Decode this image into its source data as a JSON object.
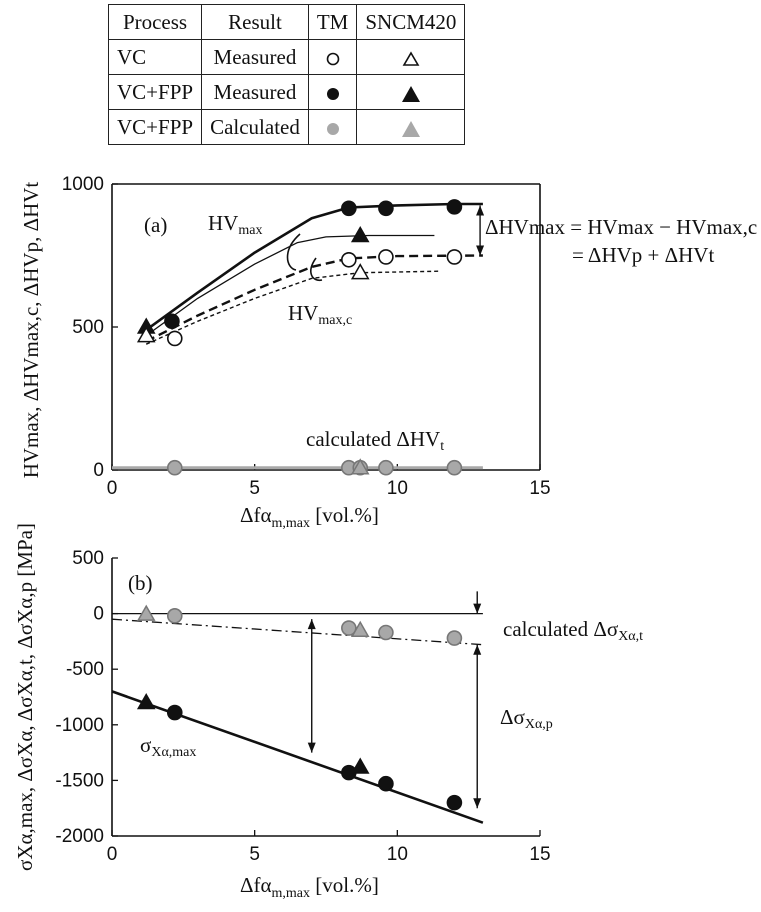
{
  "legend": {
    "headers": [
      "Process",
      "Result",
      "TM",
      "SNCM420"
    ],
    "rows": [
      {
        "process": "VC",
        "result": "Measured",
        "tm_marker": "open-circle",
        "sncm_marker": "open-triangle"
      },
      {
        "process": "VC+FPP",
        "result": "Measured",
        "tm_marker": "filled-circle",
        "sncm_marker": "filled-triangle"
      },
      {
        "process": "VC+FPP",
        "result": "Calculated",
        "tm_marker": "gray-circle",
        "sncm_marker": "gray-triangle"
      }
    ]
  },
  "colors": {
    "black": "#111111",
    "gray": "#a8a8a8",
    "gray_stroke": "#777777",
    "white": "#ffffff"
  },
  "chart_data": [
    {
      "type": "scatter",
      "panel_label": "(a)",
      "xlabel": "Δfα",
      "xlabel_sub": "m,max",
      "xlabel_unit": " [vol.%]",
      "ylabel": "HVmax, ΔHVmax,c, ΔHVp, ΔHVt",
      "xlim": [
        0,
        15
      ],
      "ylim": [
        0,
        1000
      ],
      "xticks": [
        0,
        5,
        10,
        15
      ],
      "yticks": [
        0,
        500,
        1000
      ],
      "xtick_labels": [
        "0",
        "5",
        "10",
        "15"
      ],
      "ytick_labels": [
        "0",
        "500",
        "1000"
      ],
      "series": [
        {
          "name": "TM VC+FPP measured HVmax",
          "marker": "filled-circle",
          "x": [
            2.1,
            8.3,
            9.6,
            12.0
          ],
          "y": [
            520,
            915,
            915,
            920
          ]
        },
        {
          "name": "SNCM420 VC+FPP measured HVmax",
          "marker": "filled-triangle",
          "x": [
            1.2,
            8.7
          ],
          "y": [
            500,
            820
          ]
        },
        {
          "name": "TM VC measured HVmax,c",
          "marker": "open-circle",
          "x": [
            2.2,
            8.3,
            9.6,
            12.0
          ],
          "y": [
            460,
            735,
            745,
            745
          ]
        },
        {
          "name": "SNCM420 VC measured HVmax,c",
          "marker": "open-triangle",
          "x": [
            1.2,
            8.7
          ],
          "y": [
            470,
            690
          ]
        },
        {
          "name": "TM calculated ΔHVt",
          "marker": "gray-circle",
          "x": [
            2.2,
            8.3,
            8.7,
            9.6,
            12.0
          ],
          "y": [
            8,
            8,
            8,
            8,
            8
          ]
        },
        {
          "name": "SNCM420 calculated ΔHVt",
          "marker": "gray-triangle",
          "x": [
            8.7
          ],
          "y": [
            8
          ]
        }
      ],
      "curves": [
        {
          "name": "TM HVmax fit",
          "style": "solid-thick",
          "x": [
            1.2,
            3.0,
            5.0,
            7.0,
            8.3,
            10.0,
            12.0,
            13.0
          ],
          "y": [
            490,
            620,
            760,
            880,
            918,
            925,
            930,
            930
          ]
        },
        {
          "name": "SNCM420 HVmax fit",
          "style": "solid-thin",
          "x": [
            1.2,
            3.0,
            5.0,
            6.5,
            7.5,
            9.0,
            11.3
          ],
          "y": [
            470,
            600,
            720,
            795,
            815,
            820,
            820
          ]
        },
        {
          "name": "TM HVmax,c fit",
          "style": "dashed-thick",
          "x": [
            1.2,
            3.0,
            5.0,
            7.0,
            8.3,
            10.0,
            13.0
          ],
          "y": [
            450,
            540,
            630,
            710,
            740,
            748,
            750
          ]
        },
        {
          "name": "SNCM420 HVmax,c fit",
          "style": "dashed-thin",
          "x": [
            1.2,
            3.0,
            5.0,
            7.0,
            8.7,
            11.5
          ],
          "y": [
            440,
            520,
            600,
            670,
            690,
            695
          ]
        },
        {
          "name": "calculated ΔHVt line",
          "style": "gray-thick",
          "x": [
            0,
            13
          ],
          "y": [
            8,
            8
          ]
        }
      ],
      "annotations": [
        {
          "text": "HV",
          "sub": "max"
        },
        {
          "text": "HV",
          "sub": "max,c"
        },
        {
          "text": "calculated ΔHV",
          "sub": "t"
        },
        {
          "text": "ΔHVmax = HVmax − HVmax,c",
          "line2": "= ΔHVp + ΔHVt"
        }
      ],
      "arrows": [
        {
          "x": 12.9,
          "y_from": 925,
          "y_to": 750
        }
      ]
    },
    {
      "type": "scatter",
      "panel_label": "(b)",
      "xlabel": "Δfα",
      "xlabel_sub": "m,max",
      "xlabel_unit": " [vol.%]",
      "ylabel": "σXα,max, ΔσXα, ΔσXα,t, ΔσXα,p [MPa]",
      "xlim": [
        0,
        15
      ],
      "ylim": [
        -2000,
        500
      ],
      "xticks": [
        0,
        5,
        10,
        15
      ],
      "yticks": [
        -2000,
        -1500,
        -1000,
        -500,
        0,
        500
      ],
      "xtick_labels": [
        "0",
        "5",
        "10",
        "15"
      ],
      "ytick_labels": [
        "-2000",
        "-1500",
        "-1000",
        "-500",
        "0",
        "500"
      ],
      "series": [
        {
          "name": "TM VC+FPP measured σXα,max",
          "marker": "filled-circle",
          "x": [
            2.2,
            8.3,
            9.6,
            12.0
          ],
          "y": [
            -890,
            -1430,
            -1530,
            -1700
          ]
        },
        {
          "name": "SNCM420 VC+FPP measured σXα,max",
          "marker": "filled-triangle",
          "x": [
            1.2,
            8.7
          ],
          "y": [
            -800,
            -1380
          ]
        },
        {
          "name": "TM calculated ΔσXα,t",
          "marker": "gray-circle",
          "x": [
            2.2,
            8.3,
            9.6,
            12.0
          ],
          "y": [
            -20,
            -130,
            -170,
            -220
          ]
        },
        {
          "name": "SNCM420 calculated ΔσXα,t",
          "marker": "gray-triangle",
          "x": [
            1.2,
            8.7
          ],
          "y": [
            -5,
            -150
          ]
        }
      ],
      "curves": [
        {
          "name": "σXα,max fit",
          "style": "solid-thick",
          "x": [
            0,
            13
          ],
          "y": [
            -700,
            -1880
          ]
        },
        {
          "name": "ΔσXα,t fit",
          "style": "dashdot",
          "x": [
            0,
            13
          ],
          "y": [
            -50,
            -280
          ]
        },
        {
          "name": "zero line",
          "style": "solid-thin",
          "x": [
            0,
            13
          ],
          "y": [
            0,
            0
          ]
        }
      ],
      "annotations": [
        {
          "text": "σ",
          "sub": "Xα,max"
        },
        {
          "text": "calculated Δσ",
          "sub": "Xα,t"
        },
        {
          "text": "Δσ",
          "sub": "Xα,p"
        }
      ],
      "arrows": [
        {
          "x": 7.0,
          "y_from": -50,
          "y_to": -1250,
          "double": true
        },
        {
          "x": 12.8,
          "y_from": -280,
          "y_to": -1750,
          "double": true
        },
        {
          "x": 12.8,
          "y_from": 200,
          "y_to": 0,
          "double": false
        }
      ]
    }
  ]
}
